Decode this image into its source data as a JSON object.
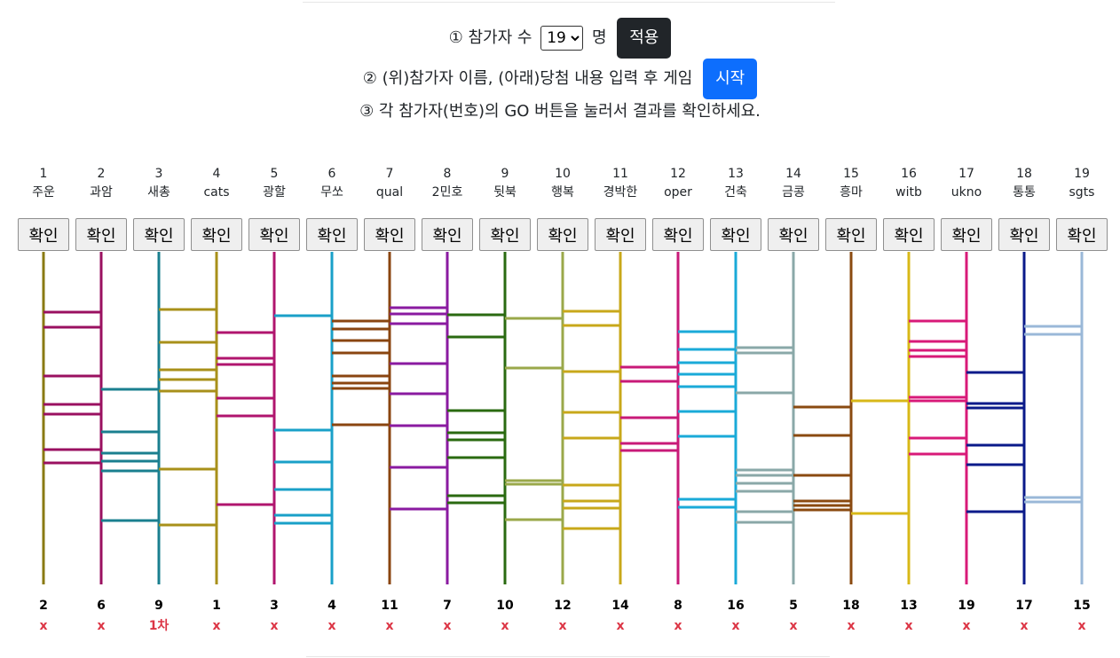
{
  "controls": {
    "step1": {
      "text_before": "① 참가자 수",
      "count_value": "19",
      "text_after": "명",
      "apply_label": "적용"
    },
    "step2": {
      "text": "② (위)참가자 이름, (아래)당첨 내용 입력 후 게임",
      "start_label": "시작"
    },
    "step3": {
      "text": "③ 각 참가자(번호)의 GO 버튼을 눌러서 결과를 확인하세요."
    }
  },
  "confirm_label": "확인",
  "participants": [
    {
      "num": "1",
      "name": "주운",
      "color": "#8a7a12"
    },
    {
      "num": "2",
      "name": "과암",
      "color": "#9a1060"
    },
    {
      "num": "3",
      "name": "새총",
      "color": "#1a7f8f"
    },
    {
      "num": "4",
      "name": "cats",
      "color": "#a8901a"
    },
    {
      "num": "5",
      "name": "광할",
      "color": "#b0156e"
    },
    {
      "num": "6",
      "name": "무쏘",
      "color": "#1aa0c8"
    },
    {
      "num": "7",
      "name": "qual",
      "color": "#8a4510"
    },
    {
      "num": "8",
      "name": "2민호",
      "color": "#8a1aa0"
    },
    {
      "num": "9",
      "name": "뒷북",
      "color": "#2a6a10"
    },
    {
      "num": "10",
      "name": "행복",
      "color": "#9aa84a"
    },
    {
      "num": "11",
      "name": "경박한",
      "color": "#c8a81a"
    },
    {
      "num": "12",
      "name": "oper",
      "color": "#c81a78"
    },
    {
      "num": "13",
      "name": "건축",
      "color": "#1aaad8"
    },
    {
      "num": "14",
      "name": "금콩",
      "color": "#8aa8a8"
    },
    {
      "num": "15",
      "name": "흥마",
      "color": "#8a4a10"
    },
    {
      "num": "16",
      "name": "witb",
      "color": "#d8b818"
    },
    {
      "num": "17",
      "name": "ukno",
      "color": "#d81a78"
    },
    {
      "num": "18",
      "name": "통통",
      "color": "#0a1a8a"
    },
    {
      "num": "19",
      "name": "sgts",
      "color": "#9ab8d8"
    }
  ],
  "results": [
    {
      "dest": "2",
      "prize": "x"
    },
    {
      "dest": "6",
      "prize": "x"
    },
    {
      "dest": "9",
      "prize": "1차"
    },
    {
      "dest": "1",
      "prize": "x"
    },
    {
      "dest": "3",
      "prize": "x"
    },
    {
      "dest": "4",
      "prize": "x"
    },
    {
      "dest": "11",
      "prize": "x"
    },
    {
      "dest": "7",
      "prize": "x"
    },
    {
      "dest": "10",
      "prize": "x"
    },
    {
      "dest": "12",
      "prize": "x"
    },
    {
      "dest": "14",
      "prize": "x"
    },
    {
      "dest": "8",
      "prize": "x"
    },
    {
      "dest": "16",
      "prize": "x"
    },
    {
      "dest": "5",
      "prize": "x"
    },
    {
      "dest": "18",
      "prize": "x"
    },
    {
      "dest": "13",
      "prize": "x"
    },
    {
      "dest": "19",
      "prize": "x"
    },
    {
      "dest": "17",
      "prize": "x"
    },
    {
      "dest": "15",
      "prize": "x"
    }
  ]
}
